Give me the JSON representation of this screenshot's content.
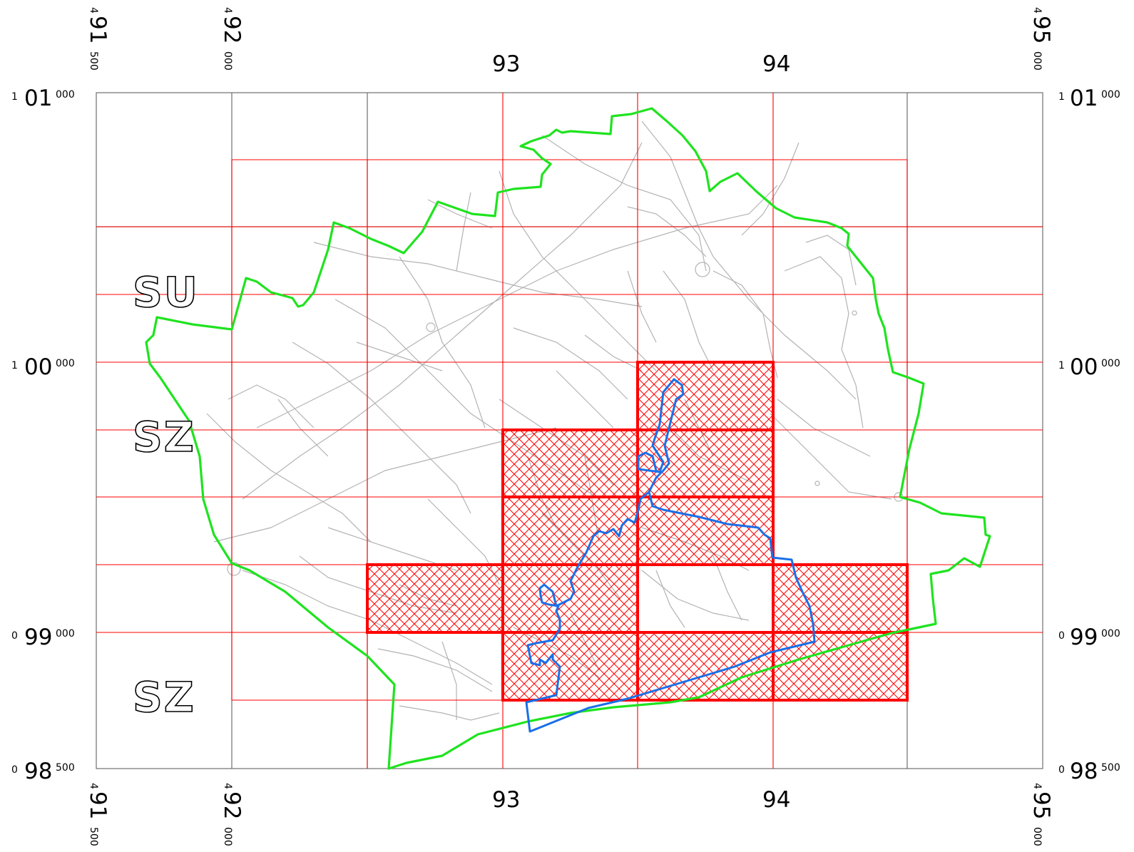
{
  "map": {
    "colors": {
      "grid_grey": "#6e6e6e",
      "grid_red": "#ff0000",
      "hatch": "#ff0000",
      "boundary_green": "#1fe31f",
      "route_blue": "#1a6fe8",
      "roads": "#b3b3b3"
    },
    "top_x_labels": [
      {
        "sup": "4",
        "main": "91",
        "sub": "500"
      },
      {
        "sup": "4",
        "main": "92",
        "sub": "000"
      },
      {
        "sup": "4",
        "main": "95",
        "sub": "000"
      }
    ],
    "bottom_x_labels": [
      {
        "sup": "4",
        "main": "91",
        "sub": "500"
      },
      {
        "sup": "4",
        "main": "92",
        "sub": "000"
      },
      {
        "sup": "4",
        "main": "95",
        "sub": "000"
      }
    ],
    "mid_x_labels_top": [
      "93",
      "94"
    ],
    "mid_x_labels_bottom": [
      "93",
      "94"
    ],
    "left_y_labels": [
      {
        "sup": "1",
        "main": "01",
        "sub": "000"
      },
      {
        "sup": "1",
        "main": "00",
        "sub": "000"
      },
      {
        "sup": "0",
        "main": "99",
        "sub": "000"
      },
      {
        "sup": "0",
        "main": "98",
        "sub": "500"
      }
    ],
    "right_y_labels": [
      {
        "sup": "1",
        "main": "01",
        "sub": "000"
      },
      {
        "sup": "1",
        "main": "00",
        "sub": "000"
      },
      {
        "sup": "0",
        "main": "99",
        "sub": "000"
      },
      {
        "sup": "0",
        "main": "98",
        "sub": "500"
      }
    ],
    "zone_labels": [
      "SU",
      "SZ",
      "SZ"
    ]
  }
}
